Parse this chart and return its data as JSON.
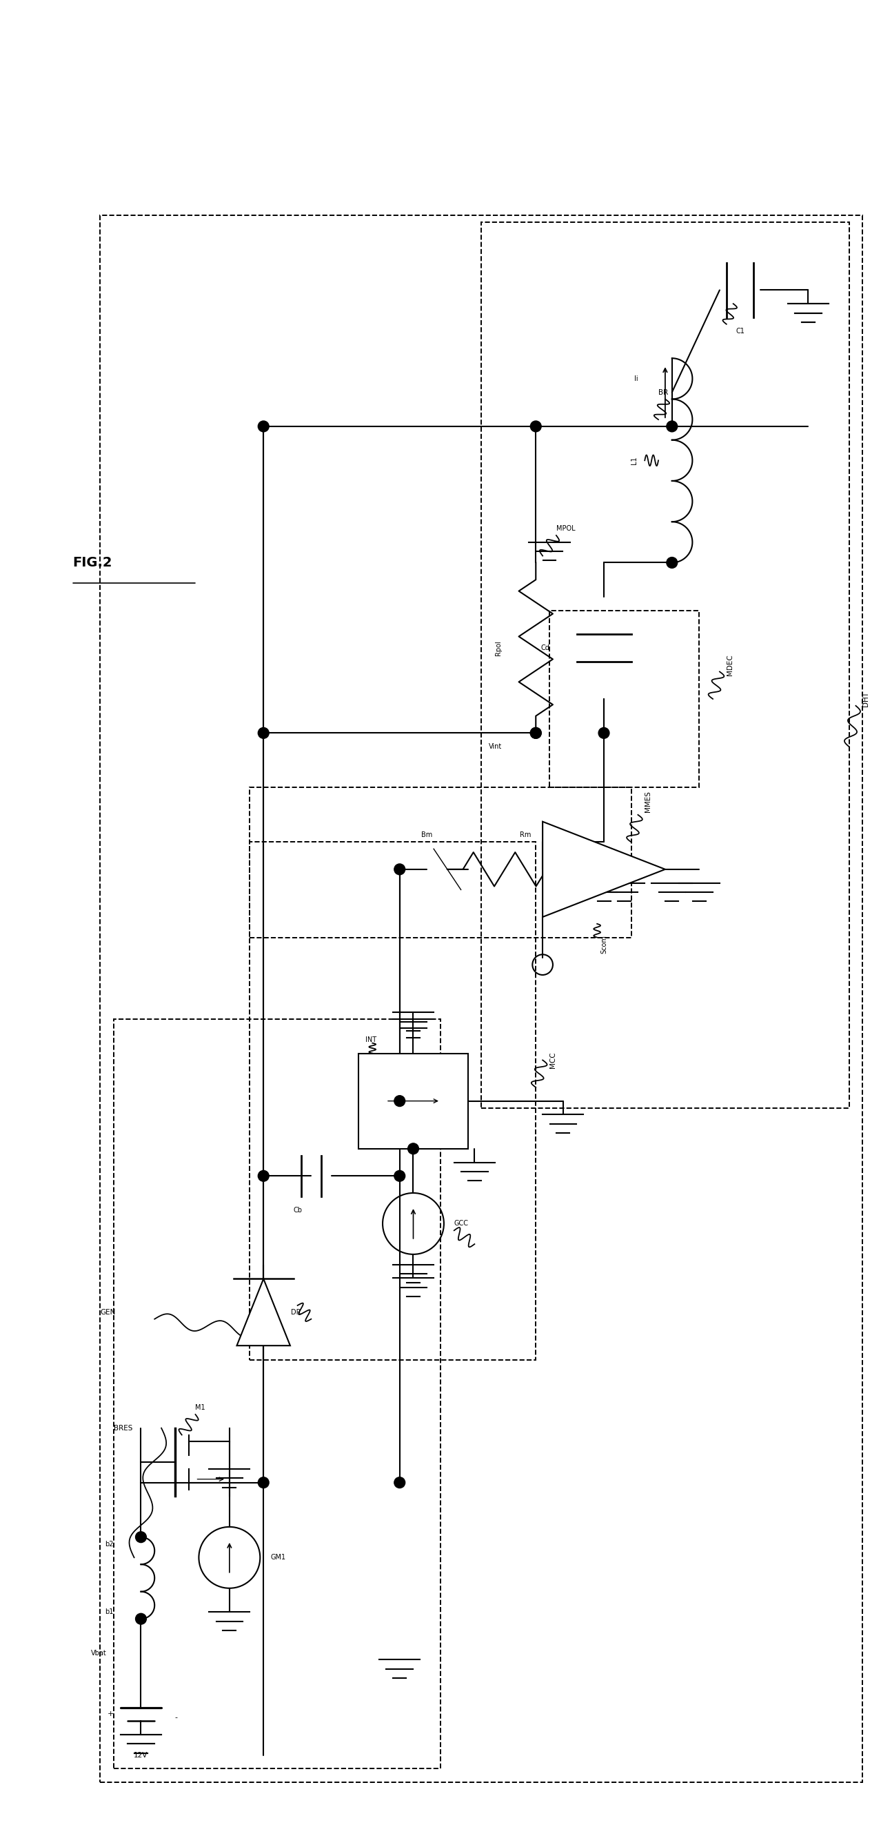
{
  "background_color": "#ffffff",
  "line_color": "#000000",
  "fig_width": 12.78,
  "fig_height": 26.58,
  "labels": {
    "fig_title": "FIG.2",
    "BRES": "BRES",
    "GEN": "GEN",
    "b1": "b1",
    "b2": "b2",
    "Vbat": "Vbat",
    "12V": "12V",
    "M1": "M1",
    "GM1": "GM1",
    "DR": "DR",
    "Cb": "Cb",
    "INT": "INT",
    "GCC": "GCC",
    "MCC": "MCC",
    "Bm": "Bm",
    "Rm": "Rm",
    "MMES": "MMES",
    "Rpol": "Rpol",
    "Vint": "Vint",
    "MPOL": "MPOL",
    "BR": "BR",
    "Cd": "Cd",
    "MDEC": "MDEC",
    "Scom": "Scom",
    "DHT": "DHT",
    "L1": "L1",
    "Ii": "Ii",
    "C1": "C1"
  }
}
